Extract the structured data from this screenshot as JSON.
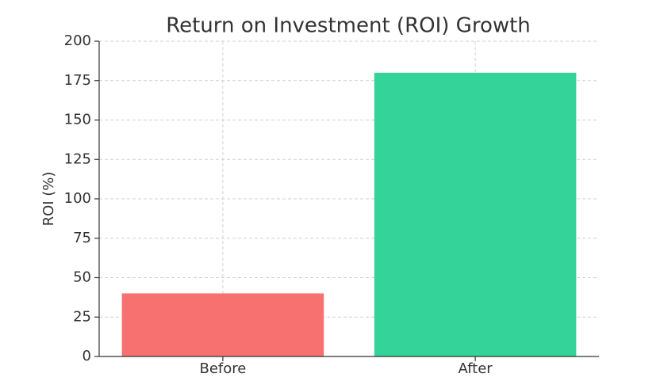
{
  "chart_data": {
    "type": "bar",
    "title": "Return on Investment (ROI) Growth",
    "ylabel": "ROI (%)",
    "categories": [
      "Before",
      "After"
    ],
    "values": [
      40,
      180
    ],
    "colors": [
      "#f87171",
      "#34d399"
    ],
    "ylim": [
      0,
      200
    ],
    "yticks": [
      0,
      25,
      50,
      75,
      100,
      125,
      150,
      175,
      200
    ],
    "grid": true
  }
}
